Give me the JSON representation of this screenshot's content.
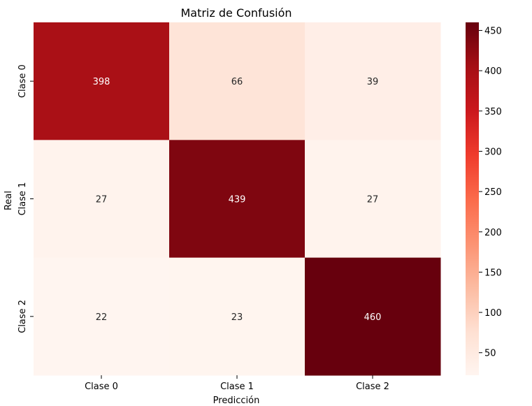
{
  "chart_data": {
    "type": "heatmap",
    "title": "Matriz de Confusión",
    "xlabel": "Predicción",
    "ylabel": "Real",
    "x_categories": [
      "Clase 0",
      "Clase 1",
      "Clase 2"
    ],
    "y_categories": [
      "Clase 0",
      "Clase 1",
      "Clase 2"
    ],
    "values": [
      [
        398,
        66,
        39
      ],
      [
        27,
        439,
        27
      ],
      [
        22,
        23,
        460
      ]
    ],
    "colormap": "Reds",
    "color_range": [
      22,
      460
    ],
    "colorbar_ticks": [
      50,
      100,
      150,
      200,
      250,
      300,
      350,
      400,
      450
    ]
  }
}
